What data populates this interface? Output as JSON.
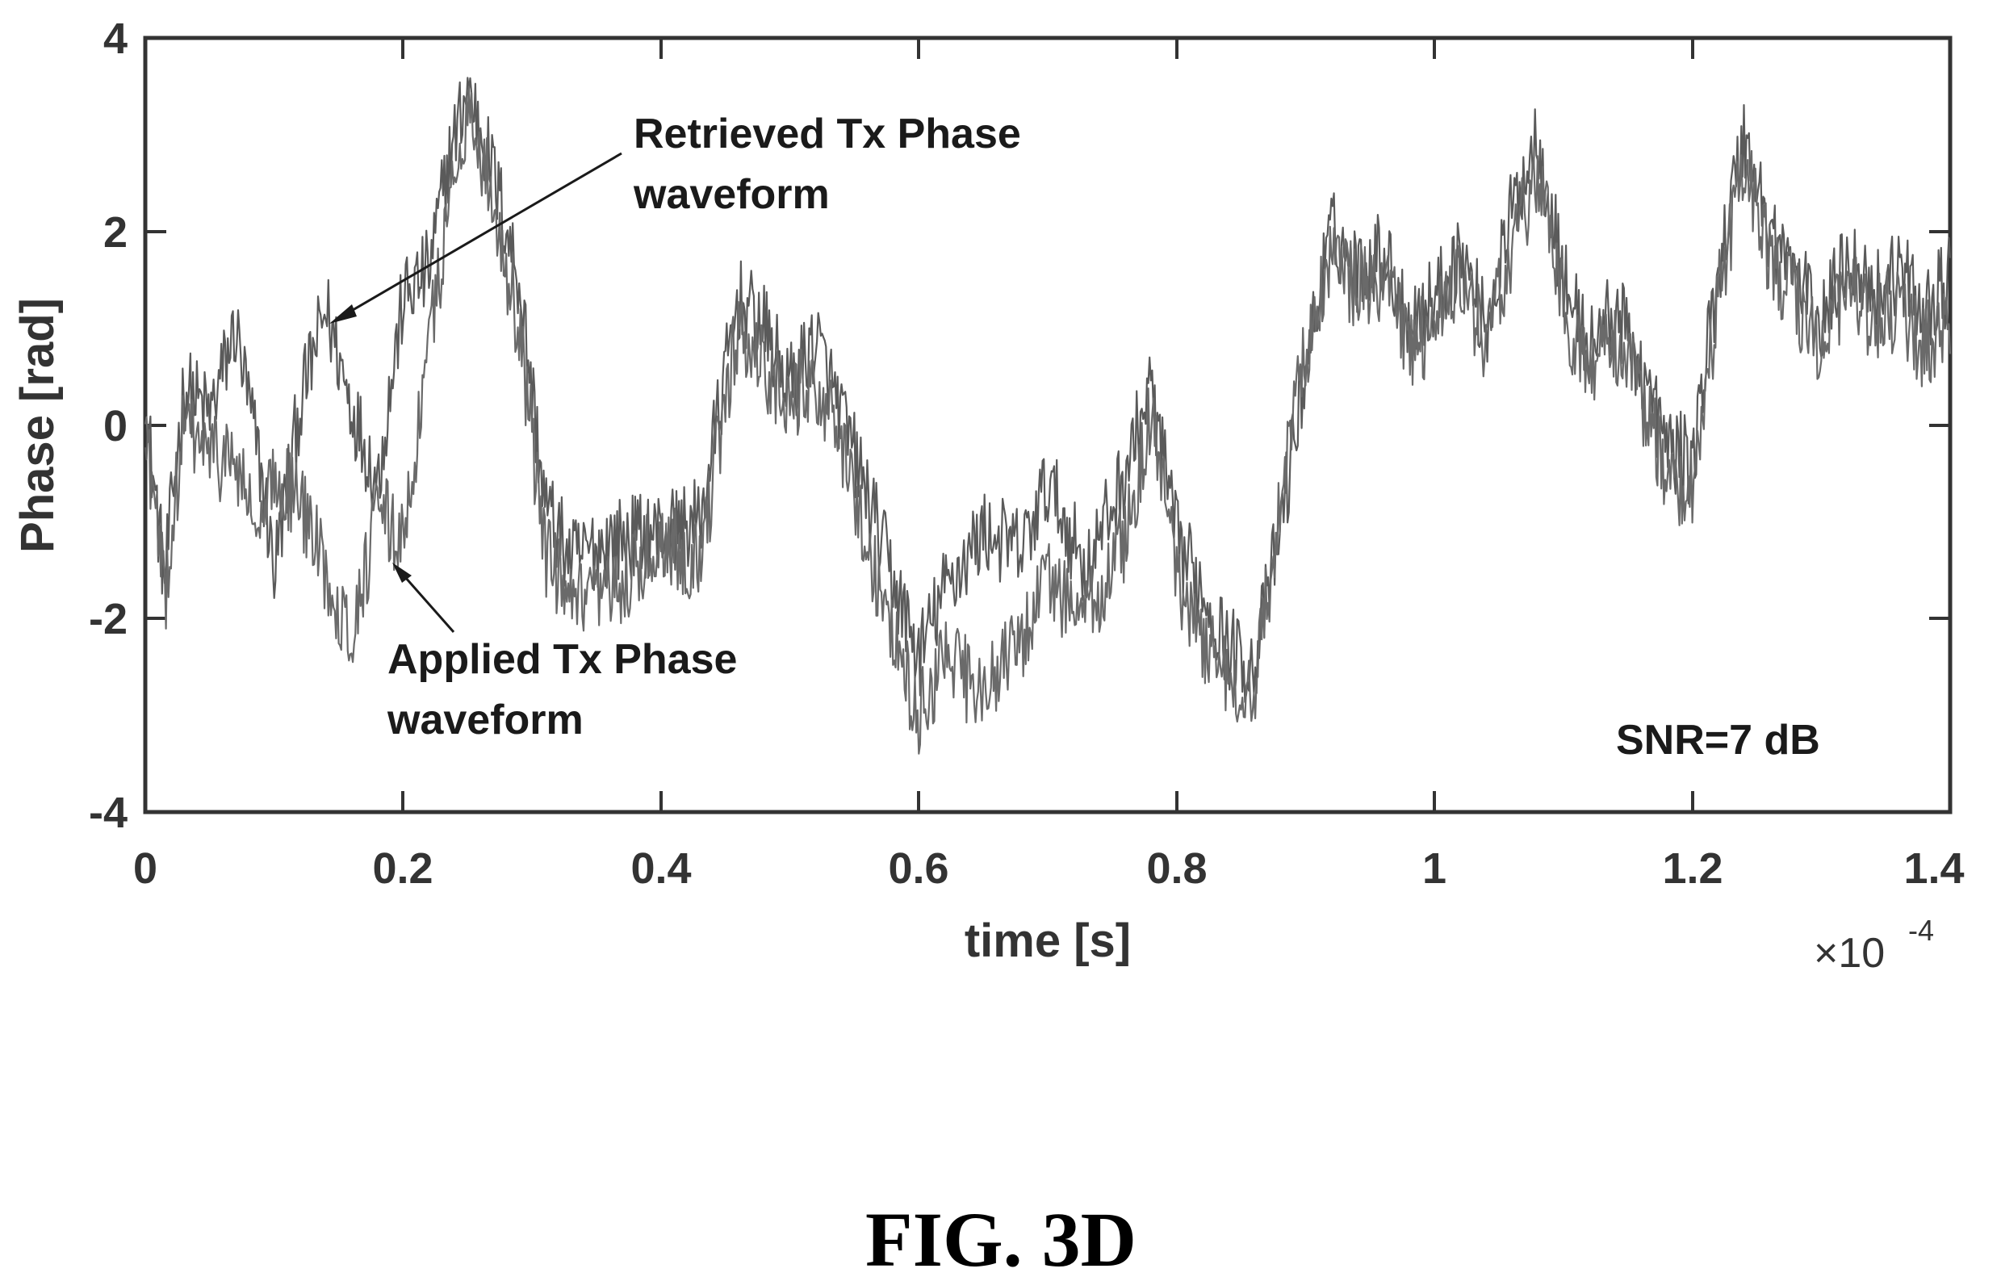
{
  "chart_data": {
    "type": "line",
    "xlabel": "time [s]",
    "ylabel": "Phase [rad]",
    "x_multiplier": "×10",
    "x_multiplier_exponent": "-4",
    "xlim": [
      0,
      1.4
    ],
    "ylim": [
      -4,
      4
    ],
    "x_ticks": [
      "0",
      "0.2",
      "0.4",
      "0.6",
      "0.8",
      "1",
      "1.2",
      "1.4"
    ],
    "y_ticks": [
      "4",
      "2",
      "0",
      "-2",
      "-4"
    ],
    "grid": false,
    "series": [
      {
        "name": "Retrieved Tx Phase waveform",
        "color": "#5a5a5a",
        "x": [
          0,
          0.005,
          0.015,
          0.03,
          0.05,
          0.07,
          0.09,
          0.1,
          0.12,
          0.14,
          0.16,
          0.18,
          0.2,
          0.22,
          0.235,
          0.25,
          0.27,
          0.29,
          0.31,
          0.33,
          0.36,
          0.4,
          0.43,
          0.46,
          0.48,
          0.5,
          0.52,
          0.55,
          0.58,
          0.6,
          0.62,
          0.65,
          0.68,
          0.7,
          0.73,
          0.76,
          0.78,
          0.8,
          0.82,
          0.84,
          0.86,
          0.88,
          0.9,
          0.92,
          0.94,
          0.96,
          0.98,
          1.0,
          1.02,
          1.04,
          1.06,
          1.08,
          1.1,
          1.12,
          1.14,
          1.16,
          1.18,
          1.2,
          1.22,
          1.24,
          1.26,
          1.28,
          1.3,
          1.32,
          1.34,
          1.36,
          1.38,
          1.4
        ],
        "y": [
          0.2,
          -0.4,
          -1.6,
          0.4,
          0.1,
          1.0,
          -0.5,
          -1.5,
          0.2,
          1.2,
          0.2,
          -0.6,
          1.3,
          1.6,
          2.7,
          3.5,
          2.6,
          1.5,
          -0.8,
          -1.4,
          -1.2,
          -1.1,
          -1.0,
          1.3,
          1.0,
          0.4,
          0.9,
          -0.3,
          -1.6,
          -2.4,
          -1.7,
          -1.1,
          -1.3,
          -0.6,
          -1.5,
          -0.5,
          0.4,
          -1.2,
          -1.7,
          -2.3,
          -2.5,
          -1.1,
          0.6,
          2.0,
          1.6,
          1.8,
          1.1,
          1.3,
          1.8,
          1.0,
          2.2,
          3.0,
          1.5,
          0.8,
          1.2,
          0.6,
          -0.2,
          -0.4,
          1.6,
          3.0,
          2.0,
          1.6,
          1.0,
          1.8,
          1.4,
          1.6,
          1.2,
          1.5
        ]
      },
      {
        "name": "Applied Tx Phase waveform",
        "color": "#6a6a6a",
        "x": [
          0,
          0.005,
          0.015,
          0.03,
          0.05,
          0.07,
          0.09,
          0.1,
          0.12,
          0.14,
          0.16,
          0.18,
          0.2,
          0.22,
          0.235,
          0.25,
          0.27,
          0.29,
          0.31,
          0.33,
          0.36,
          0.4,
          0.43,
          0.46,
          0.48,
          0.5,
          0.52,
          0.55,
          0.58,
          0.6,
          0.62,
          0.65,
          0.68,
          0.7,
          0.73,
          0.76,
          0.78,
          0.8,
          0.82,
          0.84,
          0.86,
          0.88,
          0.9,
          0.92,
          0.94,
          0.96,
          0.98,
          1.0,
          1.02,
          1.04,
          1.06,
          1.08,
          1.1,
          1.12,
          1.14,
          1.16,
          1.18,
          1.2,
          1.22,
          1.24,
          1.26,
          1.28,
          1.3,
          1.32,
          1.34,
          1.36,
          1.38,
          1.4
        ],
        "y": [
          0.1,
          -0.6,
          -1.8,
          0.0,
          -0.3,
          -0.4,
          -1.2,
          -0.5,
          -0.8,
          -1.5,
          -2.2,
          -0.9,
          -1.2,
          0.8,
          2.2,
          3.3,
          2.3,
          1.0,
          -1.3,
          -1.9,
          -1.8,
          -1.2,
          -1.4,
          1.0,
          0.6,
          0.2,
          0.5,
          -0.7,
          -2.2,
          -3.0,
          -2.4,
          -2.8,
          -2.2,
          -1.6,
          -2.0,
          -1.2,
          0.1,
          -1.6,
          -2.2,
          -2.6,
          -2.8,
          -0.8,
          0.8,
          1.7,
          1.4,
          1.5,
          0.8,
          1.0,
          1.5,
          0.8,
          1.8,
          2.6,
          1.2,
          0.5,
          0.9,
          0.3,
          -0.5,
          -0.7,
          1.3,
          2.7,
          1.7,
          1.3,
          0.7,
          1.4,
          1.1,
          1.2,
          0.8,
          1.1
        ]
      }
    ],
    "annotations": {
      "retrieved": {
        "line1": "Retrieved Tx Phase",
        "line2": "waveform"
      },
      "applied": {
        "line1": "Applied Tx Phase",
        "line2": "waveform"
      },
      "snr": "SNR=7 dB"
    }
  },
  "figure_caption": "FIG. 3D"
}
